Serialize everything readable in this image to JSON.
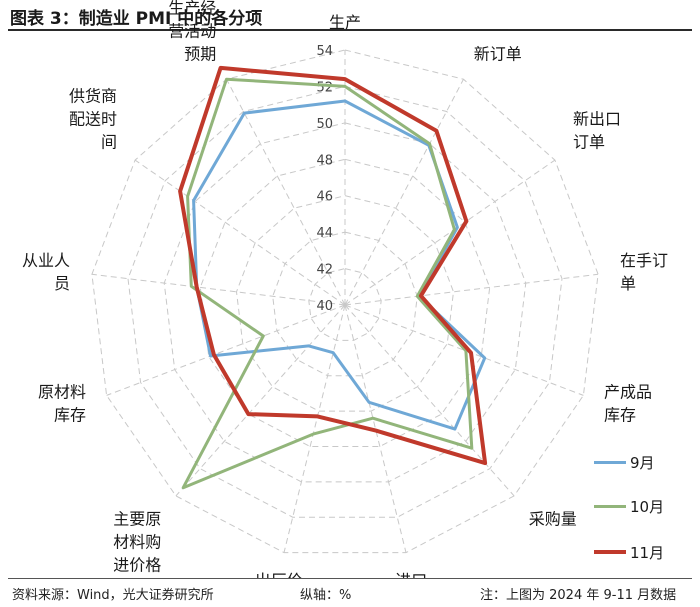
{
  "header": {
    "title": "图表 3：制造业 PMI 中的各分项"
  },
  "footer": {
    "source": "资料来源：Wind，光大证券研究所",
    "axis_note": "纵轴：%",
    "note": "注：上图为 2024 年 9-11 月数据"
  },
  "chart_data": {
    "type": "radar",
    "categories": [
      "生产",
      "新订单",
      "新出口订单",
      "在手订单",
      "产成品库存",
      "采购量",
      "进口",
      "出厂价格",
      "主要原材料购进价格",
      "原材料库存",
      "从业人员",
      "供货商配送时间",
      "生产经营活动预期"
    ],
    "category_lines": [
      [
        "生产"
      ],
      [
        "新订单"
      ],
      [
        "新出口",
        "订单"
      ],
      [
        "在手订",
        "单"
      ],
      [
        "产成品",
        "库存"
      ],
      [
        "采购量"
      ],
      [
        "进口"
      ],
      [
        "出厂价",
        "格"
      ],
      [
        "主要原",
        "材料购",
        "进价格"
      ],
      [
        "原材料",
        "库存"
      ],
      [
        "从业人",
        "员"
      ],
      [
        "供货商",
        "配送时",
        "间"
      ],
      [
        "生产经",
        "营活动",
        "预期"
      ]
    ],
    "rlim": [
      40,
      54
    ],
    "ticks": [
      40,
      42,
      44,
      46,
      48,
      50,
      52,
      54
    ],
    "tick_labels": [
      "40",
      "42",
      "44",
      "46",
      "48",
      "50",
      "52",
      "54"
    ],
    "grid": true,
    "legend_position": "bottom-right",
    "series": [
      {
        "name": "9月",
        "color": "#6fa8d6",
        "values": [
          51.2,
          49.9,
          47.5,
          44.1,
          48.2,
          49.1,
          45.5,
          42.7,
          43.0,
          47.9,
          48.2,
          50.1,
          51.9
        ]
      },
      {
        "name": "10月",
        "color": "#92b57a",
        "values": [
          52.0,
          50.0,
          47.3,
          44.0,
          47.1,
          50.5,
          46.4,
          47.3,
          53.4,
          44.8,
          48.5,
          50.5,
          54.0
        ]
      },
      {
        "name": "11月",
        "color": "#c0392b",
        "values": [
          52.4,
          50.8,
          48.1,
          44.2,
          47.4,
          51.6,
          47.1,
          46.3,
          48.0,
          47.7,
          48.2,
          51.0,
          54.7
        ]
      }
    ]
  }
}
